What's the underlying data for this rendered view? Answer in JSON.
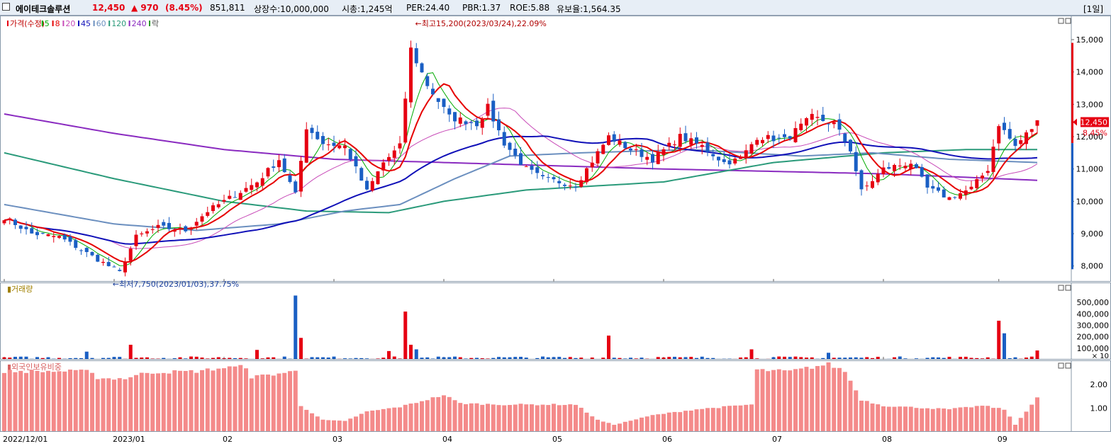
{
  "header": {
    "name": "에이테크솔루션",
    "price": "12,450",
    "change": "▲ 970",
    "change_pct": "(8.45%)",
    "volume": "851,811",
    "shares": "상장수:10,000,000",
    "mktcap": "시총:1,245억",
    "per": "PER:24.40",
    "pbr": "PBR:1.37",
    "roe": "ROE:5.88",
    "reserve": "유보율:1,564.35",
    "period": "[1일]",
    "colors": {
      "up": "#e60012",
      "down": "#1a5fc4",
      "title_bg": "#e7eef6"
    }
  },
  "legend": {
    "price": "가격(수정)",
    "ma": [
      "5",
      "8",
      "20",
      "45",
      "60",
      "120",
      "240"
    ],
    "tail": "락",
    "ma_colors": [
      "#00aa00",
      "#e60000",
      "#c84bb8",
      "#1010b8",
      "#6b8fbf",
      "#2a9a7a",
      "#8a2bc0"
    ]
  },
  "chart_data": [
    {
      "type": "candlestick",
      "title": "",
      "ylim": [
        7600,
        15700
      ],
      "y_ticks": [
        "15,000",
        "14,000",
        "13,000",
        "12,000",
        "11,000",
        "10,000",
        "9,000",
        "8,000"
      ],
      "y_tick_values": [
        15000,
        14000,
        13000,
        12000,
        11000,
        10000,
        9000,
        8000
      ],
      "x_labels": [
        "2022/12/01",
        "2023/01",
        "02",
        "03",
        "04",
        "05",
        "06",
        "07",
        "08",
        "09"
      ],
      "x_label_index": [
        0,
        20,
        40,
        60,
        80,
        100,
        120,
        140,
        160,
        181
      ],
      "annotations": {
        "high": "최고15,200(2023/03/24),22.09%",
        "high_index": 74,
        "low": "최저7,750(2023/01/03),37.75%",
        "low_index": 21
      },
      "current": {
        "price": "12,450",
        "pct": "8.45%",
        "value": 12450
      },
      "anchors": [
        [
          0,
          9500
        ],
        [
          5,
          9000
        ],
        [
          10,
          8900
        ],
        [
          14,
          8500
        ],
        [
          18,
          8100
        ],
        [
          21,
          7800
        ],
        [
          24,
          8900
        ],
        [
          28,
          9200
        ],
        [
          33,
          9100
        ],
        [
          37,
          9700
        ],
        [
          42,
          10200
        ],
        [
          46,
          10600
        ],
        [
          50,
          11300
        ],
        [
          53,
          10200
        ],
        [
          55,
          12300
        ],
        [
          58,
          11800
        ],
        [
          62,
          11700
        ],
        [
          66,
          10300
        ],
        [
          69,
          11200
        ],
        [
          72,
          11700
        ],
        [
          74,
          14700
        ],
        [
          77,
          13600
        ],
        [
          81,
          12600
        ],
        [
          86,
          12400
        ],
        [
          88,
          12900
        ],
        [
          91,
          11800
        ],
        [
          95,
          11000
        ],
        [
          98,
          10700
        ],
        [
          104,
          10500
        ],
        [
          108,
          11500
        ],
        [
          110,
          12000
        ],
        [
          114,
          11600
        ],
        [
          118,
          11300
        ],
        [
          123,
          12000
        ],
        [
          127,
          11700
        ],
        [
          131,
          11200
        ],
        [
          134,
          11300
        ],
        [
          137,
          12000
        ],
        [
          142,
          11900
        ],
        [
          147,
          12600
        ],
        [
          151,
          12400
        ],
        [
          154,
          11600
        ],
        [
          156,
          10300
        ],
        [
          160,
          11000
        ],
        [
          165,
          11200
        ],
        [
          168,
          10400
        ],
        [
          172,
          10100
        ],
        [
          176,
          10400
        ],
        [
          179,
          11000
        ],
        [
          181,
          12400
        ],
        [
          184,
          11700
        ],
        [
          188,
          12450
        ]
      ],
      "ma_levels": {
        "ma240": [
          [
            0,
            12700
          ],
          [
            20,
            12100
          ],
          [
            40,
            11600
          ],
          [
            60,
            11300
          ],
          [
            80,
            11200
          ],
          [
            120,
            11000
          ],
          [
            160,
            10850
          ],
          [
            188,
            10650
          ]
        ],
        "ma120": [
          [
            0,
            11500
          ],
          [
            20,
            10700
          ],
          [
            40,
            10000
          ],
          [
            55,
            9700
          ],
          [
            70,
            9650
          ],
          [
            80,
            10000
          ],
          [
            95,
            10350
          ],
          [
            120,
            10600
          ],
          [
            140,
            11200
          ],
          [
            160,
            11500
          ],
          [
            175,
            11600
          ],
          [
            188,
            11600
          ]
        ],
        "ma60": [
          [
            0,
            9900
          ],
          [
            20,
            9300
          ],
          [
            35,
            9100
          ],
          [
            50,
            9300
          ],
          [
            62,
            9700
          ],
          [
            72,
            9900
          ],
          [
            82,
            10700
          ],
          [
            92,
            11400
          ],
          [
            105,
            11500
          ],
          [
            125,
            11600
          ],
          [
            145,
            11400
          ],
          [
            158,
            11500
          ],
          [
            172,
            11300
          ],
          [
            188,
            11200
          ]
        ]
      }
    },
    {
      "type": "bar",
      "title": "거래량",
      "y_ticks": [
        "500,000",
        "400,000",
        "300,000",
        "200,000",
        "100,000"
      ],
      "y_tick_values": [
        500000,
        400000,
        300000,
        200000,
        100000
      ],
      "unit": "× 10",
      "ylim": [
        0,
        600000
      ],
      "spikes": [
        [
          15,
          70000
        ],
        [
          23,
          130000
        ],
        [
          46,
          85000
        ],
        [
          53,
          560000
        ],
        [
          54,
          190000
        ],
        [
          70,
          75000
        ],
        [
          73,
          420000
        ],
        [
          74,
          130000
        ],
        [
          75,
          90000
        ],
        [
          110,
          210000
        ],
        [
          136,
          90000
        ],
        [
          150,
          60000
        ],
        [
          181,
          340000
        ],
        [
          182,
          230000
        ],
        [
          188,
          80000
        ]
      ]
    },
    {
      "type": "bar",
      "title": "외국인보유비중",
      "y_ticks": [
        "2.00",
        "1.00"
      ],
      "y_tick_values": [
        2.0,
        1.0
      ],
      "ylim": [
        0,
        2.95
      ],
      "anchors": [
        [
          0,
          2.55
        ],
        [
          16,
          2.55
        ],
        [
          17,
          2.25
        ],
        [
          22,
          2.25
        ],
        [
          26,
          2.5
        ],
        [
          35,
          2.55
        ],
        [
          40,
          2.7
        ],
        [
          44,
          2.75
        ],
        [
          45,
          2.3
        ],
        [
          53,
          2.55
        ],
        [
          54,
          1.1
        ],
        [
          58,
          0.5
        ],
        [
          62,
          0.45
        ],
        [
          66,
          0.85
        ],
        [
          72,
          1.05
        ],
        [
          80,
          1.55
        ],
        [
          83,
          1.2
        ],
        [
          90,
          1.15
        ],
        [
          96,
          1.15
        ],
        [
          104,
          1.15
        ],
        [
          108,
          0.5
        ],
        [
          111,
          0.3
        ],
        [
          118,
          0.7
        ],
        [
          126,
          0.95
        ],
        [
          136,
          1.15
        ],
        [
          137,
          2.6
        ],
        [
          143,
          2.55
        ],
        [
          150,
          2.85
        ],
        [
          153,
          2.55
        ],
        [
          156,
          1.35
        ],
        [
          160,
          1.1
        ],
        [
          172,
          0.95
        ],
        [
          178,
          1.1
        ],
        [
          182,
          0.95
        ],
        [
          184,
          0.3
        ],
        [
          188,
          1.45
        ]
      ]
    }
  ]
}
